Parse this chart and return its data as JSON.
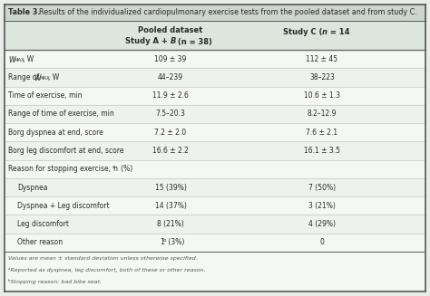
{
  "title_bold": "Table 3.",
  "title_rest": "  Results of the individualized cardiopulmonary exercise tests from the pooled dataset and from study C.",
  "header_col1": "",
  "header_col2_line1": "Pooled dataset",
  "header_col2_line2": "Study A +  B  ( n  = 38)",
  "header_col3_line1": "Study C ( n  = 14",
  "rows": [
    {
      "label": "W_MAX, W",
      "indent": false,
      "pooled": "109 ± 39",
      "studyc": "112 ± 45",
      "shaded": false
    },
    {
      "label": "Range of W_MAX, W",
      "indent": false,
      "pooled": "44–239",
      "studyc": "38–223",
      "shaded": true
    },
    {
      "label": "Time of exercise, min",
      "indent": false,
      "pooled": "11.9 ± 2.6",
      "studyc": "10.6 ± 1.3",
      "shaded": false
    },
    {
      "label": "Range of time of exercise, min",
      "indent": false,
      "pooled": "7.5–20.3",
      "studyc": "8.2–12.9",
      "shaded": true
    },
    {
      "label": "Borg dyspnea at end, score",
      "indent": false,
      "pooled": "7.2 ± 2.0",
      "studyc": "7.6 ± 2.1",
      "shaded": false
    },
    {
      "label": "Borg leg discomfort at end, score",
      "indent": false,
      "pooled": "16.6 ± 2.2",
      "studyc": "16.1 ± 3.5",
      "shaded": true
    },
    {
      "label": "Reason for stopping exercise, n (%)*",
      "indent": false,
      "pooled": "",
      "studyc": "",
      "shaded": false
    },
    {
      "label": "Dyspnea",
      "indent": true,
      "pooled": "15 (39%)",
      "studyc": "7 (50%)",
      "shaded": true
    },
    {
      "label": "Dyspnea + Leg discomfort",
      "indent": true,
      "pooled": "14 (37%)",
      "studyc": "3 (21%)",
      "shaded": false
    },
    {
      "label": "Leg discomfort",
      "indent": true,
      "pooled": "8 (21%)",
      "studyc": "4 (29%)",
      "shaded": true
    },
    {
      "label": "Other reason",
      "indent": true,
      "pooled": "1** (3%)",
      "studyc": "0",
      "shaded": false
    }
  ],
  "footnotes": [
    "Values are mean ± standard deviation unless otherwise specified.",
    "ᵃReported as dyspnea, leg discomfort, both of these or other reason.",
    "ᵇStopping reason: bad bike seat."
  ],
  "bg_light": "#edf2ed",
  "bg_white": "#f4f7f4",
  "bg_header": "#dce6dc",
  "bg_title": "#d0d8d0",
  "text_color": "#2a2a2a",
  "line_color": "#888888",
  "thick_line": "#555555"
}
